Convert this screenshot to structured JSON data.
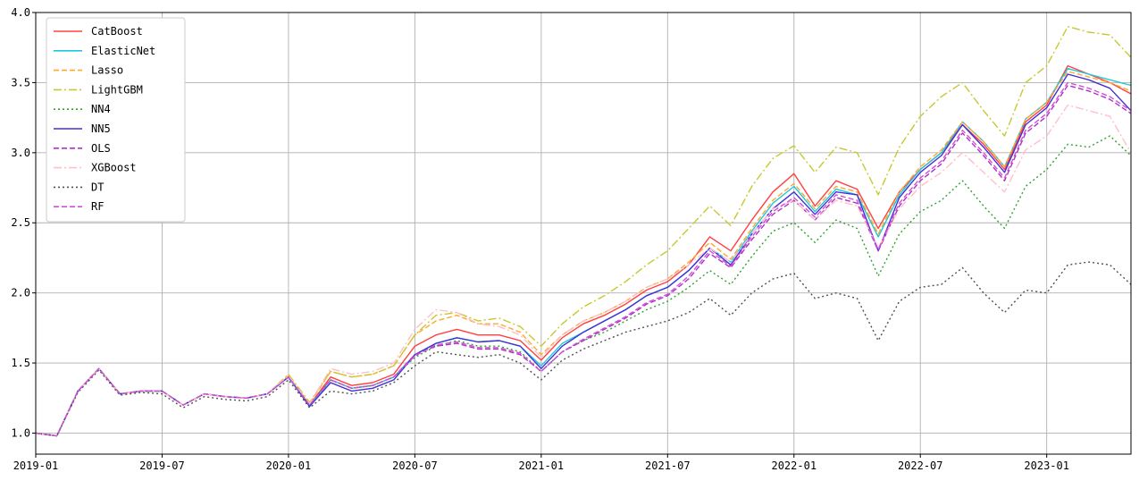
{
  "chart_data": {
    "type": "line",
    "title": "",
    "xlabel": "",
    "ylabel": "",
    "xlim": [
      "2019-01",
      "2023-05"
    ],
    "ylim": [
      0.85,
      4.0
    ],
    "x_ticks": [
      "2019-01",
      "2019-07",
      "2020-01",
      "2020-07",
      "2021-01",
      "2021-07",
      "2022-01",
      "2022-07",
      "2023-01"
    ],
    "y_ticks": [
      1.0,
      1.5,
      2.0,
      2.5,
      3.0,
      3.5,
      4.0
    ],
    "y_tick_labels": [
      "1.0",
      "1.5",
      "2.0",
      "2.5",
      "3.0",
      "3.5",
      "4.0"
    ],
    "grid": true,
    "legend_position": "top-left",
    "dates": [
      "2019-01",
      "2019-02",
      "2019-03",
      "2019-04",
      "2019-05",
      "2019-06",
      "2019-07",
      "2019-08",
      "2019-09",
      "2019-10",
      "2019-11",
      "2019-12",
      "2020-01",
      "2020-02",
      "2020-03",
      "2020-04",
      "2020-05",
      "2020-06",
      "2020-07",
      "2020-08",
      "2020-09",
      "2020-10",
      "2020-11",
      "2020-12",
      "2021-01",
      "2021-02",
      "2021-03",
      "2021-04",
      "2021-05",
      "2021-06",
      "2021-07",
      "2021-08",
      "2021-09",
      "2021-10",
      "2021-11",
      "2021-12",
      "2022-01",
      "2022-02",
      "2022-03",
      "2022-04",
      "2022-05",
      "2022-06",
      "2022-07",
      "2022-08",
      "2022-09",
      "2022-10",
      "2022-11",
      "2022-12",
      "2023-01",
      "2023-02",
      "2023-03",
      "2023-04",
      "2023-05"
    ],
    "series": [
      {
        "name": "CatBoost",
        "color": "#ff4040",
        "dash": "",
        "values": [
          1.0,
          0.98,
          1.3,
          1.46,
          1.28,
          1.3,
          1.3,
          1.2,
          1.28,
          1.26,
          1.25,
          1.28,
          1.4,
          1.2,
          1.4,
          1.34,
          1.36,
          1.42,
          1.62,
          1.7,
          1.74,
          1.7,
          1.7,
          1.66,
          1.52,
          1.68,
          1.78,
          1.84,
          1.92,
          2.02,
          2.08,
          2.2,
          2.4,
          2.3,
          2.52,
          2.72,
          2.85,
          2.62,
          2.8,
          2.74,
          2.46,
          2.72,
          2.88,
          3.0,
          3.2,
          3.06,
          2.88,
          3.22,
          3.34,
          3.62,
          3.56,
          3.5,
          3.42
        ]
      },
      {
        "name": "ElasticNet",
        "color": "#20c8d8",
        "dash": "",
        "values": [
          1.0,
          0.98,
          1.3,
          1.46,
          1.28,
          1.3,
          1.3,
          1.2,
          1.28,
          1.26,
          1.25,
          1.28,
          1.4,
          1.2,
          1.38,
          1.32,
          1.34,
          1.4,
          1.56,
          1.64,
          1.68,
          1.65,
          1.66,
          1.62,
          1.48,
          1.64,
          1.72,
          1.8,
          1.88,
          1.98,
          2.04,
          2.16,
          2.32,
          2.22,
          2.44,
          2.64,
          2.76,
          2.58,
          2.74,
          2.7,
          2.4,
          2.7,
          2.88,
          3.0,
          3.22,
          3.08,
          2.9,
          3.24,
          3.36,
          3.6,
          3.56,
          3.52,
          3.48
        ]
      },
      {
        "name": "Lasso",
        "color": "#ffa830",
        "dash": "6,3",
        "values": [
          1.0,
          0.98,
          1.3,
          1.46,
          1.28,
          1.3,
          1.3,
          1.2,
          1.28,
          1.26,
          1.25,
          1.28,
          1.41,
          1.21,
          1.44,
          1.4,
          1.42,
          1.48,
          1.7,
          1.8,
          1.84,
          1.78,
          1.78,
          1.72,
          1.56,
          1.7,
          1.8,
          1.86,
          1.94,
          2.04,
          2.1,
          2.22,
          2.36,
          2.24,
          2.46,
          2.66,
          2.78,
          2.6,
          2.76,
          2.72,
          2.42,
          2.72,
          2.9,
          3.02,
          3.22,
          3.08,
          2.9,
          3.24,
          3.36,
          3.58,
          3.54,
          3.5,
          3.44
        ]
      },
      {
        "name": "LightGBM",
        "color": "#c8c830",
        "dash": "9,3,2,3",
        "values": [
          1.0,
          0.98,
          1.3,
          1.46,
          1.28,
          1.3,
          1.3,
          1.2,
          1.28,
          1.26,
          1.25,
          1.28,
          1.42,
          1.22,
          1.44,
          1.4,
          1.42,
          1.48,
          1.7,
          1.84,
          1.86,
          1.8,
          1.82,
          1.76,
          1.62,
          1.78,
          1.9,
          1.98,
          2.08,
          2.2,
          2.3,
          2.46,
          2.62,
          2.48,
          2.76,
          2.96,
          3.05,
          2.86,
          3.04,
          3.0,
          2.7,
          3.04,
          3.26,
          3.4,
          3.5,
          3.3,
          3.12,
          3.5,
          3.62,
          3.9,
          3.86,
          3.84,
          3.68
        ]
      },
      {
        "name": "NN4",
        "color": "#30a030",
        "dash": "2,3",
        "values": [
          1.0,
          0.98,
          1.3,
          1.46,
          1.28,
          1.3,
          1.3,
          1.2,
          1.28,
          1.26,
          1.25,
          1.28,
          1.4,
          1.2,
          1.38,
          1.32,
          1.34,
          1.4,
          1.54,
          1.62,
          1.66,
          1.62,
          1.62,
          1.58,
          1.44,
          1.58,
          1.66,
          1.72,
          1.8,
          1.88,
          1.94,
          2.04,
          2.16,
          2.06,
          2.26,
          2.44,
          2.5,
          2.36,
          2.52,
          2.46,
          2.12,
          2.42,
          2.58,
          2.66,
          2.8,
          2.62,
          2.46,
          2.76,
          2.88,
          3.06,
          3.04,
          3.12,
          2.98
        ]
      },
      {
        "name": "NN5",
        "color": "#4030d8",
        "dash": "",
        "values": [
          1.0,
          0.98,
          1.3,
          1.46,
          1.28,
          1.3,
          1.3,
          1.2,
          1.28,
          1.26,
          1.25,
          1.28,
          1.4,
          1.19,
          1.36,
          1.3,
          1.32,
          1.38,
          1.56,
          1.64,
          1.68,
          1.65,
          1.66,
          1.62,
          1.46,
          1.62,
          1.72,
          1.8,
          1.88,
          1.98,
          2.04,
          2.16,
          2.32,
          2.2,
          2.42,
          2.6,
          2.72,
          2.56,
          2.72,
          2.7,
          2.3,
          2.68,
          2.86,
          2.98,
          3.2,
          3.04,
          2.86,
          3.2,
          3.32,
          3.56,
          3.52,
          3.46,
          3.3
        ]
      },
      {
        "name": "OLS",
        "color": "#b030c8",
        "dash": "6,3",
        "values": [
          1.0,
          0.98,
          1.3,
          1.46,
          1.28,
          1.3,
          1.3,
          1.2,
          1.28,
          1.26,
          1.25,
          1.28,
          1.4,
          1.2,
          1.38,
          1.32,
          1.34,
          1.4,
          1.56,
          1.62,
          1.64,
          1.6,
          1.6,
          1.56,
          1.44,
          1.58,
          1.66,
          1.74,
          1.82,
          1.92,
          1.98,
          2.1,
          2.28,
          2.18,
          2.38,
          2.56,
          2.66,
          2.52,
          2.68,
          2.64,
          2.3,
          2.62,
          2.8,
          2.92,
          3.14,
          2.98,
          2.8,
          3.14,
          3.26,
          3.48,
          3.44,
          3.38,
          3.28
        ]
      },
      {
        "name": "XGBoost",
        "color": "#ffc0c8",
        "dash": "9,3,2,3",
        "values": [
          1.0,
          0.98,
          1.3,
          1.46,
          1.28,
          1.3,
          1.3,
          1.2,
          1.28,
          1.26,
          1.25,
          1.28,
          1.41,
          1.21,
          1.46,
          1.42,
          1.44,
          1.5,
          1.74,
          1.88,
          1.86,
          1.78,
          1.76,
          1.7,
          1.54,
          1.7,
          1.8,
          1.86,
          1.94,
          2.04,
          2.1,
          2.2,
          2.32,
          2.22,
          2.42,
          2.6,
          2.66,
          2.52,
          2.66,
          2.62,
          2.32,
          2.6,
          2.76,
          2.86,
          3.0,
          2.86,
          2.72,
          3.02,
          3.12,
          3.34,
          3.3,
          3.26,
          3.0
        ]
      },
      {
        "name": "DT",
        "color": "#505050",
        "dash": "2,3",
        "values": [
          1.0,
          0.98,
          1.29,
          1.45,
          1.27,
          1.29,
          1.28,
          1.18,
          1.26,
          1.24,
          1.23,
          1.26,
          1.38,
          1.18,
          1.3,
          1.28,
          1.3,
          1.36,
          1.48,
          1.58,
          1.56,
          1.54,
          1.56,
          1.5,
          1.38,
          1.52,
          1.6,
          1.66,
          1.72,
          1.76,
          1.8,
          1.86,
          1.96,
          1.84,
          2.0,
          2.1,
          2.14,
          1.96,
          2.0,
          1.96,
          1.66,
          1.94,
          2.04,
          2.06,
          2.18,
          2.0,
          1.86,
          2.02,
          2.0,
          2.2,
          2.22,
          2.2,
          2.06
        ]
      },
      {
        "name": "RF",
        "color": "#d050d8",
        "dash": "6,3",
        "values": [
          1.0,
          0.98,
          1.3,
          1.46,
          1.28,
          1.3,
          1.3,
          1.2,
          1.28,
          1.26,
          1.25,
          1.28,
          1.4,
          1.2,
          1.38,
          1.32,
          1.34,
          1.4,
          1.55,
          1.63,
          1.65,
          1.61,
          1.61,
          1.57,
          1.44,
          1.58,
          1.67,
          1.75,
          1.83,
          1.93,
          1.99,
          2.12,
          2.3,
          2.19,
          2.4,
          2.58,
          2.68,
          2.54,
          2.7,
          2.66,
          2.31,
          2.64,
          2.82,
          2.94,
          3.16,
          3.0,
          2.82,
          3.16,
          3.28,
          3.5,
          3.46,
          3.4,
          3.3
        ]
      }
    ]
  }
}
